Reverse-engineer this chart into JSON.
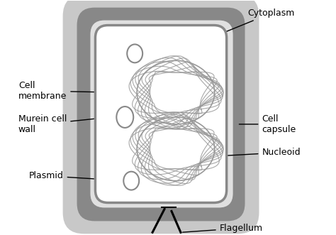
{
  "bg_color": "#ffffff",
  "capsule_fill": "#c8c8c8",
  "wall_fill": "#888888",
  "wall_inner_fill": "#e0e0e0",
  "cell_interior_fill": "#ffffff",
  "nucleoid_color": "#999999",
  "plasmid_color": "#888888",
  "annotation_color": "#000000",
  "labels": {
    "cytoplasm": "Cytoplasm",
    "cell_membrane": "Cell\nmembrane",
    "murein_cell_wall": "Murein cell\nwall",
    "plasmid": "Plasmid",
    "cell_capsule": "Cell\ncapsule",
    "nucleoid": "Nucleoid",
    "flagellum": "Flagellum"
  },
  "figsize": [
    4.74,
    3.31
  ],
  "dpi": 100
}
